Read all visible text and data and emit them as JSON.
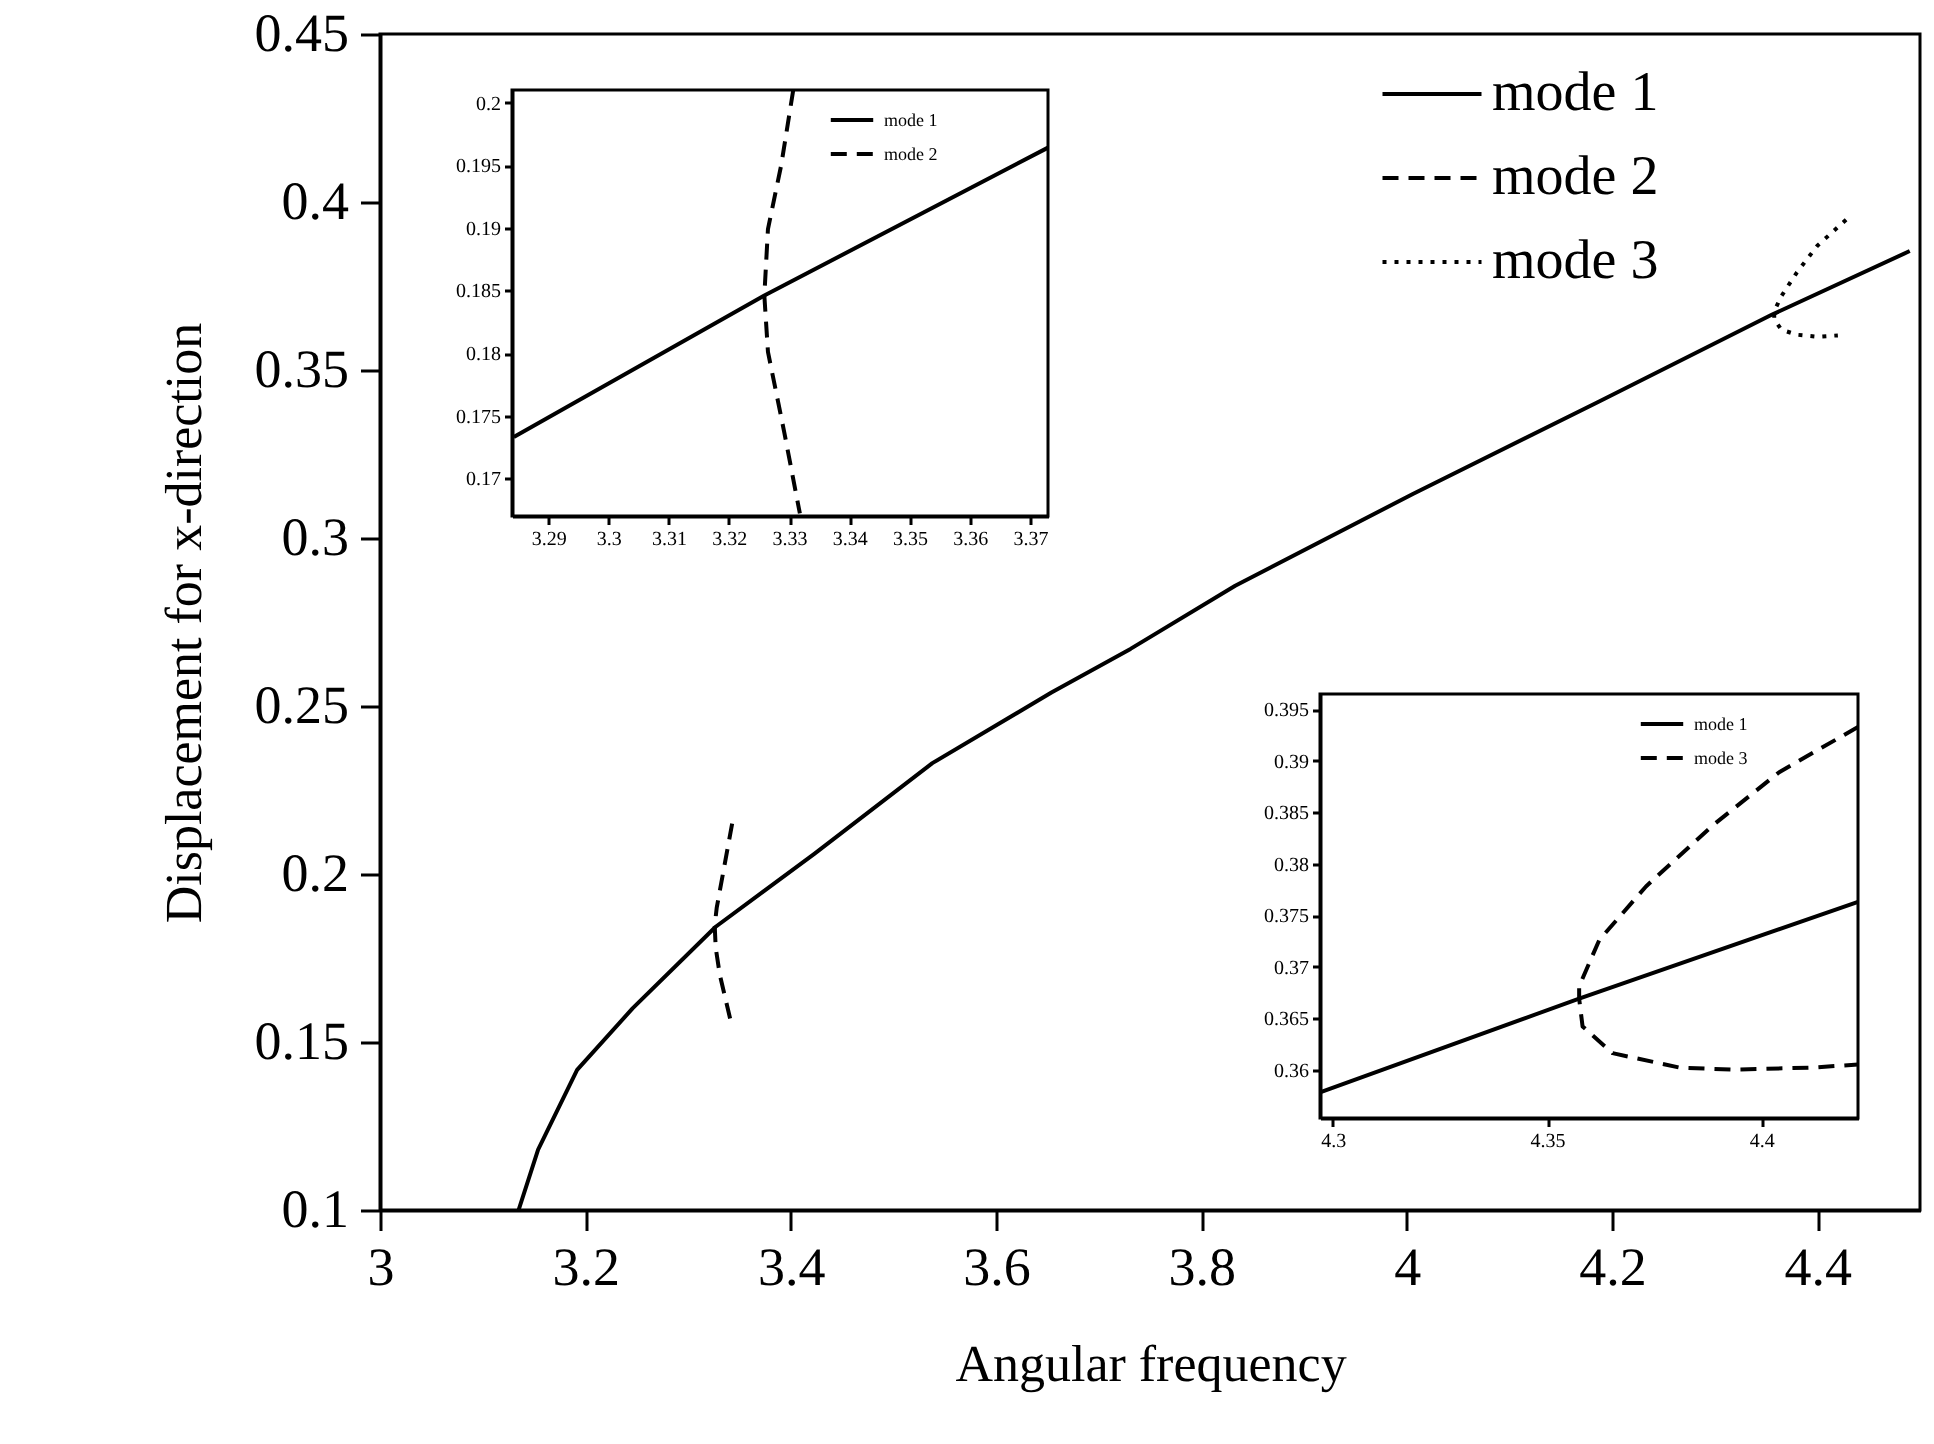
{
  "chart_data": [
    {
      "type": "line",
      "xlabel": "Angular frequency",
      "ylabel": "Displacement for x-direction",
      "xlim": [
        3,
        4.5
      ],
      "ylim": [
        0.1,
        0.45
      ],
      "xticks": [
        3,
        3.2,
        3.4,
        3.6,
        3.8,
        4,
        4.2,
        4.4
      ],
      "yticks": [
        0.1,
        0.15,
        0.2,
        0.25,
        0.3,
        0.35,
        0.4,
        0.45
      ],
      "grid": false,
      "legend": "top right",
      "series": [
        {
          "name": "mode 1",
          "color": "#000000",
          "line_style": "solid",
          "x": [
            3.135,
            3.154,
            3.192,
            3.246,
            3.327,
            3.423,
            3.538,
            3.654,
            3.731,
            3.833,
            4.006,
            4.186,
            4.356,
            4.49
          ],
          "values": [
            0.1,
            0.118,
            0.1417,
            0.16,
            0.1843,
            0.206,
            0.233,
            0.254,
            0.267,
            0.2858,
            0.3131,
            0.3404,
            0.3665,
            0.3854
          ]
        },
        {
          "name": "mode 2",
          "color": "#000000",
          "line_style": "dashed",
          "x": [
            3.343,
            3.334,
            3.328,
            3.326,
            3.327,
            3.331,
            3.341
          ],
          "values": [
            0.215,
            0.2,
            0.19,
            0.1847,
            0.178,
            0.17,
            0.157
          ]
        },
        {
          "name": "mode 3",
          "color": "#000000",
          "line_style": "dotted",
          "x": [
            4.428,
            4.4,
            4.38,
            4.365,
            4.358,
            4.358,
            4.365,
            4.38,
            4.4,
            4.42
          ],
          "values": [
            0.3947,
            0.387,
            0.379,
            0.372,
            0.3675,
            0.365,
            0.362,
            0.3605,
            0.3599,
            0.3603
          ]
        }
      ]
    },
    {
      "type": "line",
      "xlim": [
        3.284,
        3.373
      ],
      "ylim": [
        0.167,
        0.201
      ],
      "xticks": [
        3.29,
        3.3,
        3.31,
        3.32,
        3.33,
        3.34,
        3.35,
        3.36,
        3.37
      ],
      "yticks": [
        0.17,
        0.175,
        0.18,
        0.185,
        0.19,
        0.195,
        0.2
      ],
      "grid": false,
      "legend": "top right",
      "series": [
        {
          "name": "mode 1",
          "color": "#000000",
          "line_style": "solid",
          "x": [
            3.2843,
            3.3259,
            3.373
          ],
          "values": [
            0.1733,
            0.1846,
            0.1964
          ]
        },
        {
          "name": "mode 2",
          "color": "#000000",
          "line_style": "dashed",
          "x": [
            3.3307,
            3.3287,
            3.3265,
            3.3259,
            3.3265,
            3.3292,
            3.3318
          ],
          "values": [
            0.201,
            0.195,
            0.1899,
            0.1846,
            0.1801,
            0.1737,
            0.1672
          ]
        }
      ]
    },
    {
      "type": "line",
      "xlim": [
        4.297,
        4.4226
      ],
      "ylim": [
        0.3553,
        0.3965
      ],
      "xticks": [
        4.3,
        4.35,
        4.4
      ],
      "yticks": [
        0.36,
        0.365,
        0.37,
        0.375,
        0.38,
        0.385,
        0.39,
        0.395
      ],
      "grid": false,
      "legend": "top right",
      "series": [
        {
          "name": "mode 1",
          "color": "#000000",
          "line_style": "solid",
          "x": [
            4.297,
            4.3575,
            4.4226
          ],
          "values": [
            0.3578,
            0.3669,
            0.3763
          ]
        },
        {
          "name": "mode 3",
          "color": "#000000",
          "line_style": "dashed",
          "x": [
            4.4226,
            4.4042,
            4.3886,
            4.3731,
            4.3622,
            4.3575,
            4.3575,
            4.3583,
            4.3653,
            4.3809,
            4.3933,
            4.412,
            4.4226
          ],
          "values": [
            0.3933,
            0.3889,
            0.3837,
            0.3778,
            0.3726,
            0.3681,
            0.3669,
            0.3642,
            0.3616,
            0.3602,
            0.36,
            0.3602,
            0.3605
          ]
        }
      ]
    }
  ]
}
